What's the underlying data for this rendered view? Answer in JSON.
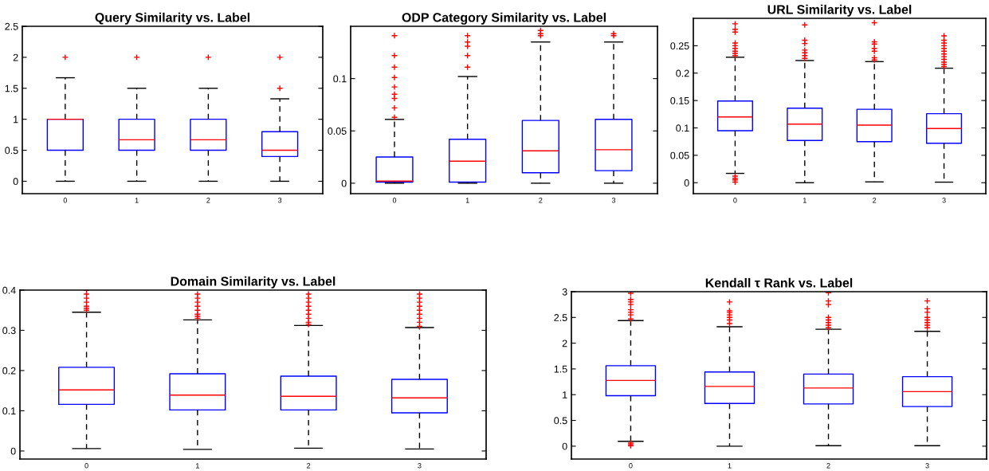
{
  "chart_data": [
    {
      "type": "box",
      "title": "Query Similarity vs. Label",
      "categories": [
        "0",
        "1",
        "2",
        "3"
      ],
      "ylim": [
        -0.2,
        2.5
      ],
      "yticks": [
        0,
        0.5,
        1,
        1.5,
        2,
        2.5
      ],
      "boxes": [
        {
          "low": 0,
          "q1": 0.5,
          "median": 1,
          "q3": 1,
          "high": 1.67,
          "outliers": [
            2
          ]
        },
        {
          "low": 0,
          "q1": 0.5,
          "median": 0.67,
          "q3": 1,
          "high": 1.5,
          "outliers": [
            2
          ]
        },
        {
          "low": 0,
          "q1": 0.5,
          "median": 0.67,
          "q3": 1,
          "high": 1.5,
          "outliers": [
            2
          ]
        },
        {
          "low": 0,
          "q1": 0.4,
          "median": 0.5,
          "q3": 0.8,
          "high": 1.33,
          "outliers": [
            1.5,
            2
          ]
        }
      ]
    },
    {
      "type": "box",
      "title": "ODP Category Similarity vs. Label",
      "categories": [
        "0",
        "1",
        "2",
        "3"
      ],
      "ylim": [
        -0.01,
        0.15
      ],
      "yticks": [
        0,
        0.05,
        0.1
      ],
      "boxes": [
        {
          "low": 0,
          "q1": 0.001,
          "median": 0.002,
          "q3": 0.025,
          "high": 0.061,
          "outliers": [
            0.063,
            0.072,
            0.081,
            0.085,
            0.092,
            0.101,
            0.111,
            0.122,
            0.141
          ]
        },
        {
          "low": 0,
          "q1": 0.001,
          "median": 0.021,
          "q3": 0.042,
          "high": 0.102,
          "outliers": [
            0.111,
            0.122,
            0.131,
            0.135,
            0.141
          ]
        },
        {
          "low": 0,
          "q1": 0.01,
          "median": 0.031,
          "q3": 0.06,
          "high": 0.135,
          "outliers": [
            0.141,
            0.143,
            0.146
          ]
        },
        {
          "low": 0,
          "q1": 0.012,
          "median": 0.032,
          "q3": 0.061,
          "high": 0.135,
          "outliers": [
            0.141,
            0.143
          ]
        }
      ]
    },
    {
      "type": "box",
      "title": "URL Similarity vs. Label",
      "categories": [
        "0",
        "1",
        "2",
        "3"
      ],
      "ylim": [
        -0.02,
        0.3
      ],
      "yticks": [
        0,
        0.05,
        0.1,
        0.15,
        0.2,
        0.25
      ],
      "boxes": [
        {
          "low": 0.017,
          "q1": 0.095,
          "median": 0.12,
          "q3": 0.149,
          "high": 0.229,
          "outliers": [
            0.001,
            0.005,
            0.008,
            0.012,
            0.232,
            0.236,
            0.24,
            0.245,
            0.25,
            0.255,
            0.275,
            0.28,
            0.29
          ]
        },
        {
          "low": 0,
          "q1": 0.077,
          "median": 0.107,
          "q3": 0.136,
          "high": 0.223,
          "outliers": [
            0.227,
            0.232,
            0.237,
            0.242,
            0.254,
            0.26,
            0.288
          ]
        },
        {
          "low": 0.0015,
          "q1": 0.075,
          "median": 0.105,
          "q3": 0.134,
          "high": 0.221,
          "outliers": [
            0.224,
            0.228,
            0.24,
            0.245,
            0.253,
            0.257,
            0.292
          ]
        },
        {
          "low": 0.001,
          "q1": 0.072,
          "median": 0.099,
          "q3": 0.126,
          "high": 0.209,
          "outliers": [
            0.212,
            0.216,
            0.22,
            0.225,
            0.23,
            0.235,
            0.24,
            0.245,
            0.25,
            0.255,
            0.26,
            0.268
          ]
        }
      ]
    },
    {
      "type": "box",
      "title": "Domain Similarity vs. Label",
      "categories": [
        "0",
        "1",
        "2",
        "3"
      ],
      "ylim": [
        -0.02,
        0.4
      ],
      "yticks": [
        0,
        0.1,
        0.2,
        0.3,
        0.4
      ],
      "boxes": [
        {
          "low": 0.006,
          "q1": 0.116,
          "median": 0.152,
          "q3": 0.208,
          "high": 0.345,
          "outliers": [
            0.35,
            0.355,
            0.36,
            0.37,
            0.38,
            0.39,
            0.4
          ]
        },
        {
          "low": 0.004,
          "q1": 0.102,
          "median": 0.139,
          "q3": 0.192,
          "high": 0.326,
          "outliers": [
            0.33,
            0.335,
            0.34,
            0.35,
            0.36,
            0.37,
            0.38,
            0.39
          ]
        },
        {
          "low": 0.007,
          "q1": 0.102,
          "median": 0.136,
          "q3": 0.186,
          "high": 0.312,
          "outliers": [
            0.315,
            0.32,
            0.33,
            0.34,
            0.35,
            0.36,
            0.37,
            0.38,
            0.39
          ]
        },
        {
          "low": 0.005,
          "q1": 0.095,
          "median": 0.132,
          "q3": 0.178,
          "high": 0.307,
          "outliers": [
            0.31,
            0.32,
            0.33,
            0.34,
            0.35,
            0.36,
            0.37,
            0.38,
            0.39
          ]
        }
      ]
    },
    {
      "type": "box",
      "title": "Kendall τ Rank vs. Label",
      "categories": [
        "0",
        "1",
        "2",
        "3"
      ],
      "ylim": [
        -0.25,
        3
      ],
      "yticks": [
        0,
        0.5,
        1,
        1.5,
        2,
        2.5,
        3
      ],
      "boxes": [
        {
          "low": 0.094,
          "q1": 0.98,
          "median": 1.277,
          "q3": 1.563,
          "high": 2.44,
          "outliers": [
            0.01,
            0.03,
            0.06,
            2.47,
            2.55,
            2.6,
            2.65,
            2.75,
            2.8,
            2.85,
            2.97
          ]
        },
        {
          "low": 0,
          "q1": 0.83,
          "median": 1.16,
          "q3": 1.44,
          "high": 2.32,
          "outliers": [
            2.38,
            2.45,
            2.5,
            2.55,
            2.6,
            2.63,
            2.8
          ]
        },
        {
          "low": 0.01,
          "q1": 0.82,
          "median": 1.13,
          "q3": 1.4,
          "high": 2.27,
          "outliers": [
            2.3,
            2.35,
            2.4,
            2.45,
            2.5,
            2.75,
            2.82,
            2.98
          ]
        },
        {
          "low": 0.01,
          "q1": 0.77,
          "median": 1.06,
          "q3": 1.35,
          "high": 2.23,
          "outliers": [
            2.3,
            2.35,
            2.4,
            2.45,
            2.5,
            2.6,
            2.67,
            2.82
          ]
        }
      ]
    }
  ]
}
